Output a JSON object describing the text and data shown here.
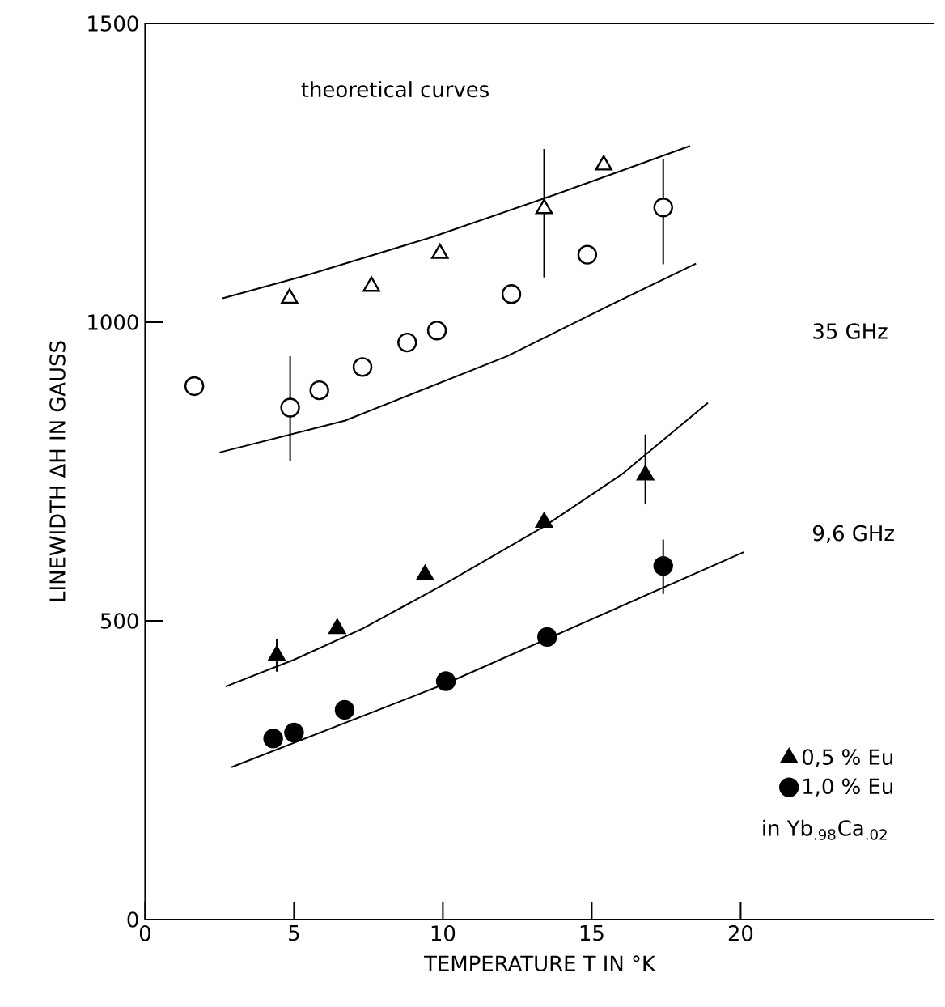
{
  "chart_data": {
    "type": "scatter",
    "xlabel": "TEMPERATURE  T  IN °K",
    "ylabel": "LINEWIDTH ΔH IN GAUSS",
    "xlim": [
      0,
      26.5
    ],
    "ylim": [
      0,
      1500
    ],
    "xticks": [
      0,
      5,
      10,
      15,
      20
    ],
    "yticks": [
      0,
      500,
      1000,
      1500
    ],
    "grid": false,
    "legend": "bottom right",
    "annotations": [
      "theoretical curves",
      "35  GHz",
      "9,6  GHz",
      "in Yb$_{.98}$Ca$_{.02}$"
    ],
    "series": [
      {
        "type": "line",
        "color": "#000000",
        "marker": "none",
        "x": [
          2.6,
          5.45,
          9.6,
          13.8,
          18.3
        ],
        "values": [
          1040,
          1079,
          1142,
          1214,
          1295
        ]
      },
      {
        "type": "line",
        "color": "#000000",
        "marker": "none",
        "x": [
          2.5,
          6.7,
          12.15,
          15.8,
          18.5
        ],
        "values": [
          782,
          835,
          943,
          1033,
          1098
        ]
      },
      {
        "type": "line",
        "color": "#000000",
        "marker": "none",
        "x": [
          2.7,
          5.0,
          7.3,
          10.0,
          13.4,
          16.0,
          18.9
        ],
        "values": [
          390,
          435,
          487,
          560,
          658,
          745,
          865
        ]
      },
      {
        "type": "line",
        "color": "#000000",
        "marker": "none",
        "x": [
          2.9,
          10.1,
          20.1
        ],
        "values": [
          255,
          395,
          615
        ]
      },
      {
        "color": "#ffffff",
        "marker": "triangle",
        "x": [
          4.85,
          7.6,
          9.9,
          13.4,
          15.4
        ],
        "values": [
          1040,
          1060,
          1115,
          1190,
          1263
        ],
        "errors": [
          null,
          null,
          null,
          [
            1075,
            1290
          ],
          null
        ]
      },
      {
        "color": "#ffffff",
        "marker": "circle",
        "x": [
          1.65,
          4.87,
          5.85,
          7.3,
          8.8,
          9.8,
          12.3,
          14.85,
          17.4
        ],
        "values": [
          893,
          857,
          886,
          925,
          966,
          986,
          1047,
          1113,
          1192
        ],
        "errors": [
          null,
          [
            767,
            943
          ],
          null,
          null,
          null,
          null,
          null,
          null,
          [
            1097,
            1273
          ]
        ]
      },
      {
        "name": "0,5 % Eu",
        "color": "#000000",
        "marker": "triangle",
        "x": [
          4.42,
          6.45,
          9.4,
          13.4,
          16.8
        ],
        "values": [
          442,
          487,
          577,
          665,
          744
        ],
        "errors": [
          [
            415,
            470
          ],
          null,
          null,
          null,
          [
            695,
            812
          ]
        ]
      },
      {
        "name": "1,0 % Eu",
        "color": "#000000",
        "marker": "circle",
        "x": [
          4.3,
          5.0,
          6.7,
          10.1,
          13.5,
          17.4
        ],
        "values": [
          303,
          313,
          351,
          399,
          473,
          592
        ],
        "errors": [
          null,
          null,
          null,
          null,
          null,
          [
            545,
            636
          ]
        ]
      }
    ]
  }
}
